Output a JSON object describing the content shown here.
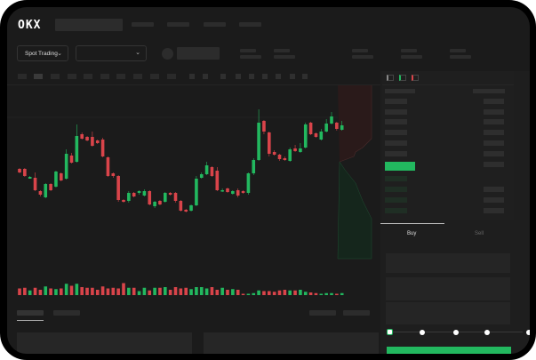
{
  "header": {
    "logo": "OKX",
    "nav_items": 4
  },
  "toolbar": {
    "market_select": "Spot Trading",
    "pair_select": ""
  },
  "order_book": {
    "view_icons": [
      "order-book-both-icon",
      "order-book-bids-icon",
      "order-book-asks-icon"
    ]
  },
  "trade_panel": {
    "tabs": [
      {
        "label": "Buy",
        "active": true
      },
      {
        "label": "Sell",
        "active": false
      }
    ],
    "slider_percent": 0
  },
  "colors": {
    "up": "#22b85f",
    "down": "#d9444a",
    "background": "#1b1b1b",
    "accent": "#22b85f"
  },
  "chart_data": {
    "type": "candlestick",
    "candles": [
      [
        58,
        54,
        59,
        53
      ],
      [
        58,
        50,
        59,
        49
      ],
      [
        47,
        49,
        50,
        47
      ],
      [
        48,
        34,
        54,
        33
      ],
      [
        33,
        29,
        34,
        27
      ],
      [
        26,
        41,
        42,
        25
      ],
      [
        41,
        34,
        42,
        33
      ],
      [
        38,
        55,
        56,
        37
      ],
      [
        53,
        45,
        54,
        44
      ],
      [
        47,
        75,
        80,
        46
      ],
      [
        73,
        65,
        76,
        64
      ],
      [
        66,
        95,
        108,
        65
      ],
      [
        97,
        92,
        99,
        91
      ],
      [
        94,
        90,
        95,
        89
      ],
      [
        94,
        84,
        100,
        83
      ],
      [
        90,
        87,
        91,
        86
      ],
      [
        91,
        72,
        93,
        71
      ],
      [
        71,
        50,
        72,
        49
      ],
      [
        53,
        50,
        54,
        48
      ],
      [
        50,
        23,
        51,
        21
      ],
      [
        23,
        21,
        24,
        20
      ],
      [
        22,
        31,
        33,
        20
      ],
      [
        31,
        27,
        32,
        26
      ],
      [
        31,
        33,
        34,
        29
      ],
      [
        28,
        33,
        35,
        27
      ],
      [
        33,
        18,
        34,
        17
      ],
      [
        16,
        21,
        22,
        14
      ],
      [
        22,
        18,
        23,
        17
      ],
      [
        21,
        31,
        32,
        20
      ],
      [
        31,
        29,
        32,
        28
      ],
      [
        31,
        22,
        32,
        20
      ],
      [
        22,
        11,
        23,
        10
      ],
      [
        12,
        10,
        13,
        9
      ],
      [
        11,
        17,
        18,
        10
      ],
      [
        17,
        47,
        50,
        16
      ],
      [
        48,
        52,
        54,
        47
      ],
      [
        52,
        62,
        66,
        51
      ],
      [
        60,
        50,
        61,
        49
      ],
      [
        56,
        34,
        60,
        33
      ],
      [
        33,
        34,
        36,
        32
      ],
      [
        36,
        32,
        37,
        31
      ],
      [
        30,
        33,
        34,
        29
      ],
      [
        34,
        28,
        36,
        26
      ],
      [
        33,
        31,
        34,
        30
      ],
      [
        31,
        53,
        54,
        29
      ],
      [
        53,
        68,
        70,
        51
      ],
      [
        68,
        110,
        125,
        67
      ],
      [
        112,
        100,
        113,
        97
      ],
      [
        99,
        75,
        100,
        72
      ],
      [
        77,
        74,
        79,
        73
      ],
      [
        74,
        69,
        75,
        67
      ],
      [
        70,
        68,
        72,
        67
      ],
      [
        67,
        80,
        82,
        66
      ],
      [
        81,
        78,
        85,
        77
      ],
      [
        77,
        81,
        87,
        76
      ],
      [
        82,
        108,
        110,
        81
      ],
      [
        110,
        97,
        111,
        96
      ],
      [
        98,
        94,
        99,
        93
      ],
      [
        91,
        100,
        103,
        90
      ],
      [
        100,
        109,
        114,
        99
      ],
      [
        109,
        117,
        122,
        108
      ],
      [
        110,
        103,
        111,
        101
      ],
      [
        102,
        107,
        112,
        101
      ]
    ],
    "volumes": [
      10,
      11,
      7,
      11,
      8,
      13,
      10,
      9,
      10,
      17,
      14,
      17,
      12,
      11,
      11,
      8,
      13,
      10,
      11,
      10,
      18,
      11,
      11,
      6,
      11,
      7,
      11,
      11,
      12,
      8,
      12,
      10,
      11,
      9,
      12,
      12,
      10,
      12,
      8,
      11,
      8,
      9,
      8,
      2,
      2,
      3,
      7,
      6,
      6,
      5,
      7,
      8,
      7,
      7,
      8,
      5,
      4,
      3,
      2,
      3,
      3,
      2,
      3
    ]
  }
}
